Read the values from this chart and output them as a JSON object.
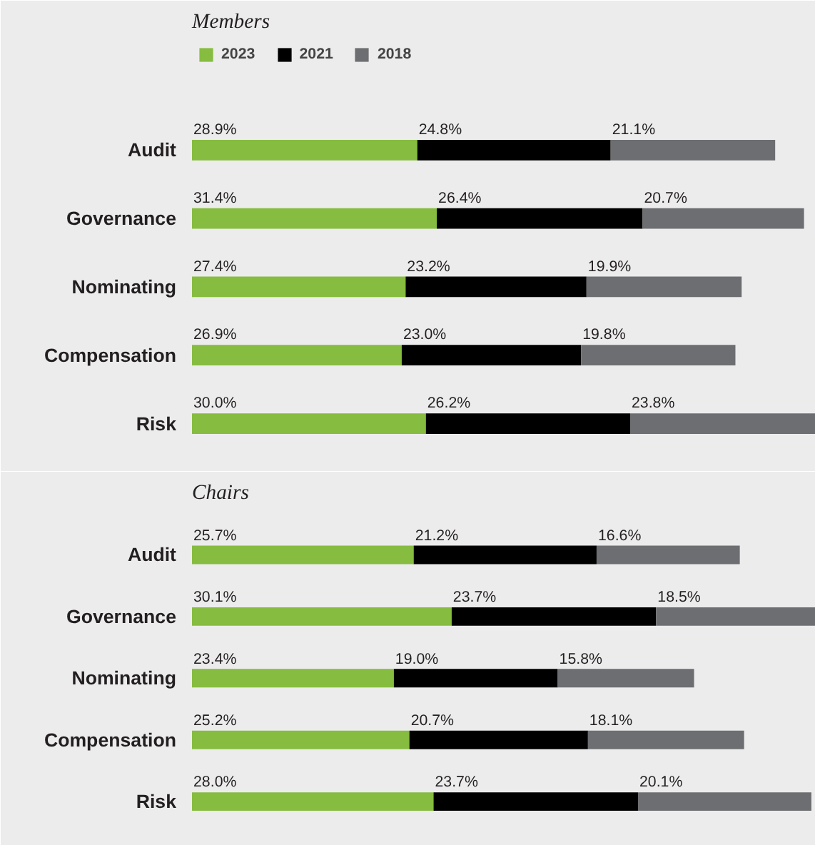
{
  "chart_data": [
    {
      "type": "bar",
      "orientation": "horizontal",
      "stacked": true,
      "title": "Members",
      "legend": "top left",
      "tick_labels": "y",
      "grid": false,
      "categories": [
        "Audit",
        "Governance",
        "Nominating",
        "Compensation",
        "Risk"
      ],
      "series": [
        {
          "name": "2023",
          "color": "#86bc40",
          "values": [
            28.9,
            31.4,
            27.4,
            26.9,
            30.0
          ],
          "value_labels": [
            "28.9%",
            "31.4%",
            "27.4%",
            "26.9%",
            "30.0%"
          ]
        },
        {
          "name": "2021",
          "color": "#000000",
          "values": [
            24.8,
            26.4,
            23.2,
            23.0,
            26.2
          ],
          "value_labels": [
            "24.8%",
            "26.4%",
            "23.2%",
            "23.0%",
            "26.2%"
          ]
        },
        {
          "name": "2018",
          "color": "#6d6e71",
          "values": [
            21.1,
            20.7,
            19.9,
            19.8,
            23.8
          ],
          "value_labels": [
            "21.1%",
            "20.7%",
            "19.9%",
            "19.8%",
            "23.8%"
          ]
        }
      ]
    },
    {
      "type": "bar",
      "orientation": "horizontal",
      "stacked": true,
      "title": "Chairs",
      "tick_labels": "y",
      "grid": false,
      "categories": [
        "Audit",
        "Governance",
        "Nominating",
        "Compensation",
        "Risk"
      ],
      "series": [
        {
          "color": "#86bc40",
          "values": [
            25.7,
            30.1,
            23.4,
            25.2,
            28.0
          ],
          "value_labels": [
            "25.7%",
            "30.1%",
            "23.4%",
            "25.2%",
            "28.0%"
          ]
        },
        {
          "color": "#000000",
          "values": [
            21.2,
            23.7,
            19.0,
            20.7,
            23.7
          ],
          "value_labels": [
            "21.2%",
            "23.7%",
            "19.0%",
            "20.7%",
            "23.7%"
          ]
        },
        {
          "color": "#6d6e71",
          "values": [
            16.6,
            18.5,
            15.8,
            18.1,
            20.1
          ],
          "value_labels": [
            "16.6%",
            "18.5%",
            "15.8%",
            "18.1%",
            "20.1%"
          ]
        }
      ]
    }
  ]
}
